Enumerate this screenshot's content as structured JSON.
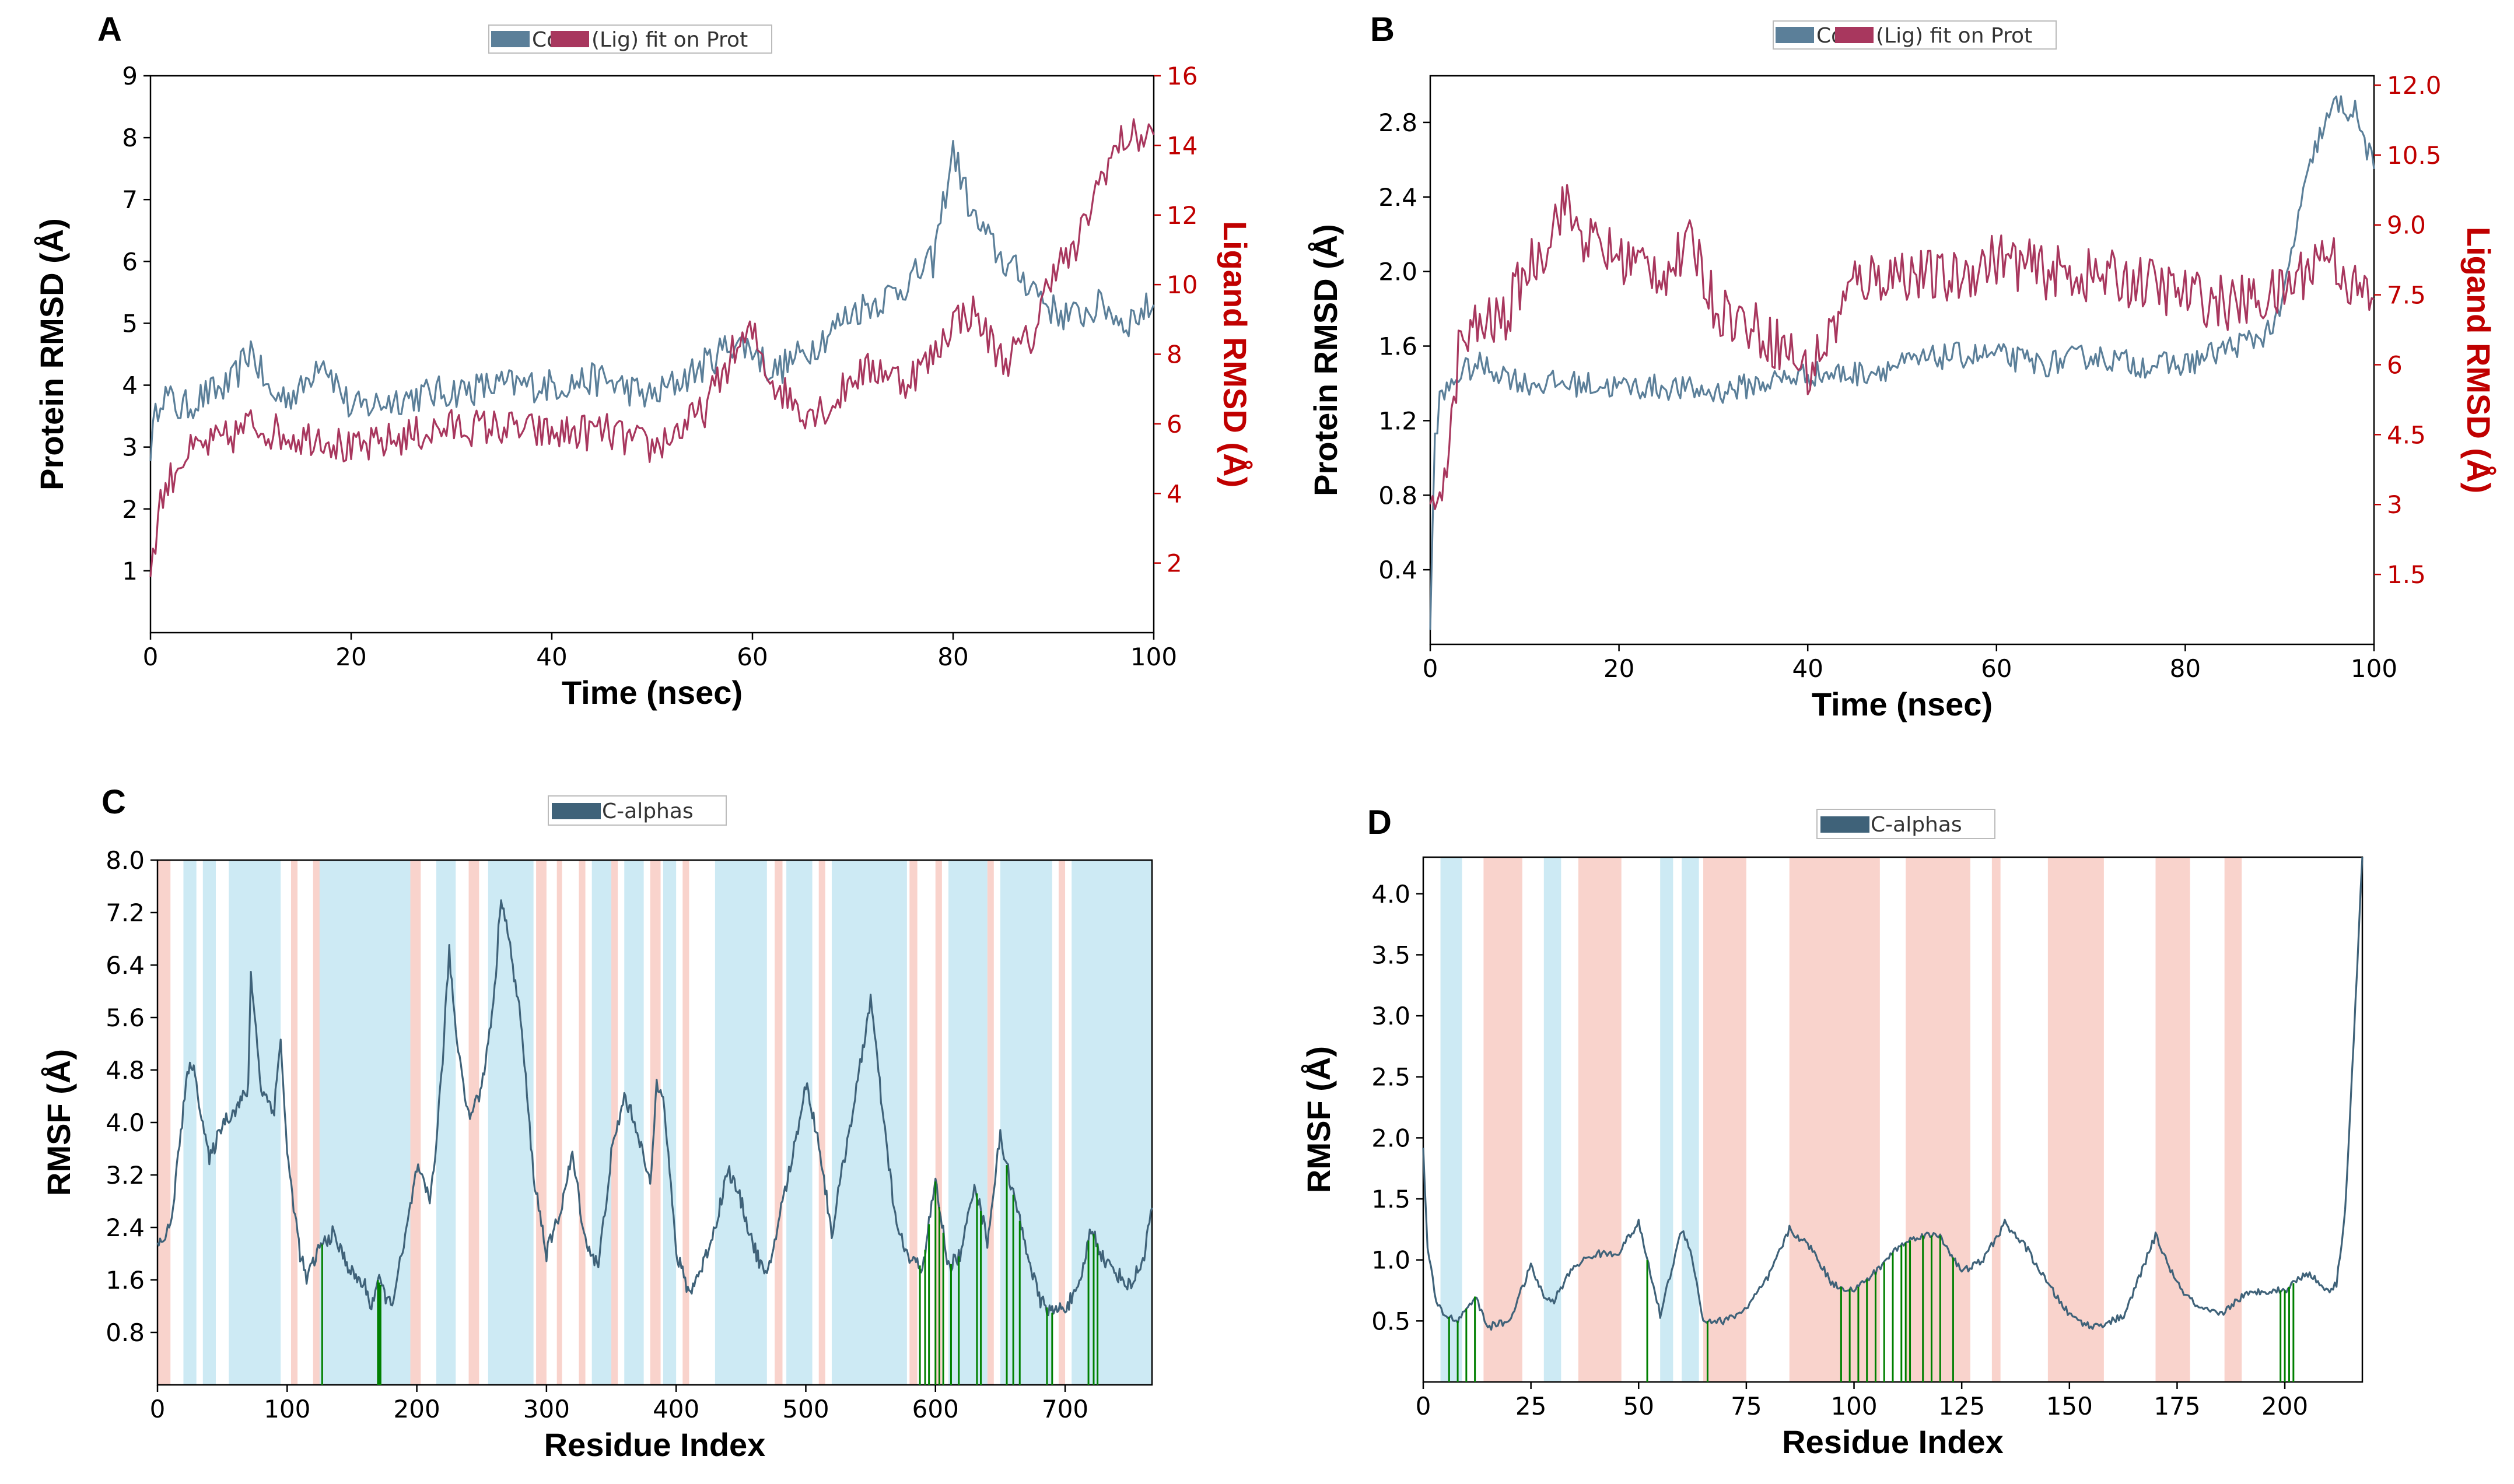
{
  "chart_data": [
    {
      "panel": "A",
      "type": "line",
      "legend": [
        "Cα",
        "(Lig) fit on Prot"
      ],
      "xlabel": "Time (nsec)",
      "ylabel": "Protein RMSD (Å)",
      "y2label": "Ligand RMSD (Å)",
      "xlim": [
        0,
        100
      ],
      "ylim": [
        0,
        9
      ],
      "y2lim": [
        0,
        16
      ],
      "xticks": [
        0,
        20,
        40,
        60,
        80,
        100
      ],
      "yticks": [
        1,
        2,
        3,
        4,
        5,
        6,
        7,
        8,
        9
      ],
      "y2ticks": [
        "2",
        "4",
        "6",
        "8",
        "10",
        "12",
        "14",
        "16"
      ],
      "colors": {
        "protein": "#5b7f99",
        "ligand": "#a8375e"
      },
      "series": [
        {
          "name": "Cα",
          "axis": "left",
          "x": [
            0,
            1,
            3,
            5,
            8,
            10,
            12,
            15,
            17,
            20,
            25,
            30,
            35,
            40,
            45,
            50,
            55,
            58,
            60,
            62,
            65,
            68,
            70,
            73,
            75,
            78,
            80,
            82,
            85,
            88,
            90,
            92,
            95,
            97,
            100
          ],
          "values": [
            3.0,
            3.9,
            3.6,
            3.8,
            4.0,
            4.6,
            3.8,
            3.9,
            4.5,
            3.6,
            3.8,
            3.9,
            4.0,
            4.0,
            4.1,
            3.8,
            4.3,
            4.7,
            4.6,
            4.2,
            4.5,
            4.9,
            5.2,
            5.4,
            5.6,
            6.0,
            7.8,
            6.7,
            6.0,
            5.6,
            5.2,
            5.1,
            5.3,
            5.0,
            5.3
          ]
        },
        {
          "name": "(Lig) fit on Prot",
          "axis": "right",
          "x": [
            0,
            1,
            3,
            5,
            8,
            10,
            12,
            15,
            17,
            20,
            25,
            30,
            35,
            40,
            45,
            50,
            55,
            58,
            60,
            62,
            65,
            68,
            70,
            73,
            75,
            78,
            80,
            82,
            85,
            88,
            90,
            92,
            95,
            97,
            100
          ],
          "values": [
            1.8,
            3.8,
            5.0,
            5.3,
            5.6,
            6.0,
            5.8,
            5.6,
            5.7,
            5.2,
            5.6,
            5.9,
            5.9,
            5.7,
            5.8,
            5.3,
            6.3,
            8.0,
            8.6,
            7.2,
            6.4,
            6.5,
            7.4,
            7.6,
            7.2,
            7.9,
            9.0,
            9.2,
            7.8,
            8.5,
            10.6,
            10.8,
            13.3,
            14.2,
            14.3
          ]
        }
      ]
    },
    {
      "panel": "B",
      "type": "line",
      "legend": [
        "Cα",
        "(Lig) fit on Prot"
      ],
      "xlabel": "Time (nsec)",
      "ylabel": "Protein RMSD (Å)",
      "y2label": "Ligand RMSD (Å)",
      "xlim": [
        0,
        100
      ],
      "ylim": [
        0,
        3.05
      ],
      "y2lim": [
        0,
        12.2
      ],
      "xticks": [
        0,
        20,
        40,
        60,
        80,
        100
      ],
      "yticks": [
        "0.4",
        "0.8",
        "1.2",
        "1.6",
        "2.0",
        "2.4",
        "2.8"
      ],
      "y2ticks": [
        "1.5",
        "3",
        "4.5",
        "6",
        "7.5",
        "9.0",
        "10.5",
        "12.0"
      ],
      "colors": {
        "protein": "#5b7f99",
        "ligand": "#a8375e"
      },
      "series": [
        {
          "name": "Cα",
          "axis": "left",
          "x": [
            0,
            0.5,
            1,
            3,
            5,
            8,
            10,
            15,
            20,
            25,
            30,
            35,
            40,
            45,
            50,
            55,
            60,
            65,
            70,
            75,
            80,
            85,
            88,
            90,
            92,
            94,
            96,
            98,
            100
          ],
          "values": [
            0.1,
            1.1,
            1.3,
            1.45,
            1.5,
            1.45,
            1.4,
            1.4,
            1.38,
            1.38,
            1.35,
            1.4,
            1.45,
            1.45,
            1.5,
            1.55,
            1.55,
            1.5,
            1.55,
            1.5,
            1.5,
            1.6,
            1.65,
            1.75,
            2.3,
            2.7,
            2.9,
            2.85,
            2.55
          ]
        },
        {
          "name": "(Lig) fit on Prot",
          "axis": "right",
          "x": [
            0,
            0.5,
            1,
            2,
            3,
            5,
            8,
            10,
            12,
            14,
            16,
            18,
            20,
            25,
            28,
            30,
            35,
            38,
            40,
            42,
            45,
            50,
            55,
            60,
            65,
            70,
            75,
            80,
            85,
            90,
            95,
            98,
            100
          ],
          "values": [
            2.5,
            3.0,
            3.5,
            4.0,
            6.3,
            6.8,
            7.0,
            8.0,
            8.5,
            9.5,
            8.8,
            8.5,
            8.3,
            8.0,
            8.6,
            7.3,
            6.7,
            6.3,
            5.8,
            6.5,
            7.8,
            8.0,
            7.8,
            8.3,
            8.0,
            7.9,
            7.8,
            7.5,
            7.3,
            7.5,
            8.5,
            7.6,
            7.4
          ]
        }
      ]
    },
    {
      "panel": "C",
      "type": "line",
      "legend": [
        "C-alphas"
      ],
      "xlabel": "Residue Index",
      "ylabel": "RMSF (Å)",
      "xlim": [
        0,
        767
      ],
      "ylim": [
        0,
        8.0
      ],
      "xticks": [
        0,
        100,
        200,
        300,
        400,
        500,
        600,
        700
      ],
      "yticks": [
        "0.8",
        "1.6",
        "2.4",
        "3.2",
        "4.0",
        "4.8",
        "5.6",
        "6.4",
        "7.2",
        "8.0"
      ],
      "colors": {
        "line": "#3f6279",
        "helix": "#f9d3cc",
        "strand": "#cdeaf4",
        "contact": "#008000"
      },
      "helix_regions": [
        [
          0,
          10
        ],
        [
          103,
          108
        ],
        [
          120,
          126
        ],
        [
          195,
          203
        ],
        [
          240,
          248
        ],
        [
          292,
          300
        ],
        [
          308,
          312
        ],
        [
          325,
          330
        ],
        [
          350,
          355
        ],
        [
          380,
          388
        ],
        [
          405,
          410
        ],
        [
          476,
          482
        ],
        [
          510,
          515
        ],
        [
          580,
          586
        ],
        [
          600,
          605
        ],
        [
          640,
          645
        ],
        [
          695,
          700
        ]
      ],
      "strand_regions": [
        [
          20,
          30
        ],
        [
          35,
          45
        ],
        [
          55,
          95
        ],
        [
          125,
          195
        ],
        [
          215,
          230
        ],
        [
          255,
          290
        ],
        [
          335,
          350
        ],
        [
          360,
          375
        ],
        [
          390,
          400
        ],
        [
          430,
          470
        ],
        [
          485,
          505
        ],
        [
          520,
          578
        ],
        [
          610,
          640
        ],
        [
          650,
          690
        ],
        [
          705,
          767
        ]
      ],
      "contacts": [
        127,
        170,
        171,
        172,
        588,
        592,
        595,
        600,
        603,
        606,
        612,
        618,
        632,
        635,
        655,
        660,
        665,
        686,
        690,
        718,
        722,
        725
      ],
      "series": [
        {
          "name": "C-alphas",
          "x": [
            0,
            10,
            20,
            25,
            30,
            40,
            50,
            60,
            70,
            72,
            80,
            90,
            95,
            100,
            110,
            115,
            125,
            135,
            140,
            150,
            160,
            165,
            170,
            180,
            190,
            200,
            210,
            215,
            220,
            225,
            230,
            240,
            250,
            260,
            265,
            270,
            280,
            290,
            300,
            310,
            320,
            330,
            340,
            350,
            360,
            370,
            380,
            385,
            390,
            400,
            410,
            420,
            430,
            440,
            450,
            460,
            470,
            480,
            490,
            500,
            510,
            520,
            530,
            540,
            550,
            560,
            570,
            580,
            590,
            600,
            610,
            620,
            630,
            640,
            650,
            660,
            670,
            680,
            690,
            700,
            710,
            720,
            730,
            740,
            750,
            760,
            767
          ],
          "values": [
            2.1,
            2.4,
            4.2,
            5.0,
            4.6,
            3.4,
            4.0,
            4.2,
            4.5,
            6.3,
            4.5,
            4.2,
            5.3,
            3.5,
            2.0,
            1.6,
            2.1,
            2.3,
            2.1,
            1.7,
            1.5,
            1.2,
            1.6,
            1.2,
            2.1,
            3.3,
            2.8,
            3.7,
            5.0,
            6.6,
            5.4,
            4.1,
            4.5,
            6.0,
            7.5,
            6.9,
            5.6,
            3.2,
            2.0,
            2.6,
            3.5,
            2.2,
            1.8,
            3.5,
            4.4,
            3.9,
            3.0,
            4.6,
            4.5,
            2.0,
            1.4,
            1.8,
            2.4,
            3.3,
            2.8,
            2.1,
            1.6,
            2.6,
            3.5,
            4.6,
            3.7,
            2.3,
            3.5,
            4.6,
            5.9,
            4.0,
            2.4,
            1.9,
            1.8,
            3.1,
            1.8,
            2.0,
            3.1,
            2.2,
            3.8,
            2.9,
            2.1,
            1.3,
            1.1,
            1.2,
            1.4,
            2.4,
            1.9,
            1.7,
            1.5,
            1.9,
            2.7
          ]
        }
      ]
    },
    {
      "panel": "D",
      "type": "line",
      "legend": [
        "C-alphas"
      ],
      "xlabel": "Residue Index",
      "ylabel": "RMSF (Å)",
      "xlim": [
        0,
        218
      ],
      "ylim": [
        0,
        4.3
      ],
      "xticks": [
        0,
        25,
        50,
        75,
        100,
        125,
        150,
        175,
        200
      ],
      "yticks": [
        "0.5",
        "1.0",
        "1.5",
        "2.0",
        "2.5",
        "3.0",
        "3.5",
        "4.0"
      ],
      "colors": {
        "line": "#3f6279",
        "helix": "#f9d3cc",
        "strand": "#cdeaf4",
        "contact": "#008000"
      },
      "helix_regions": [
        [
          14,
          23
        ],
        [
          36,
          46
        ],
        [
          65,
          75
        ],
        [
          85,
          106
        ],
        [
          112,
          127
        ],
        [
          132,
          134
        ],
        [
          145,
          158
        ],
        [
          170,
          178
        ],
        [
          186,
          190
        ]
      ],
      "strand_regions": [
        [
          4,
          9
        ],
        [
          28,
          32
        ],
        [
          55,
          58
        ],
        [
          60,
          64
        ]
      ],
      "contacts": [
        6,
        8,
        10,
        12,
        52,
        66,
        97,
        99,
        101,
        103,
        105,
        107,
        109,
        111,
        112,
        113,
        116,
        118,
        120,
        123,
        199,
        200,
        201,
        202
      ],
      "series": [
        {
          "name": "C-alphas",
          "x": [
            0,
            1,
            3,
            5,
            8,
            10,
            12,
            15,
            20,
            25,
            28,
            30,
            35,
            40,
            45,
            50,
            55,
            60,
            62,
            65,
            70,
            75,
            80,
            85,
            90,
            95,
            100,
            105,
            110,
            115,
            120,
            125,
            130,
            135,
            140,
            145,
            150,
            155,
            160,
            163,
            165,
            170,
            175,
            180,
            185,
            190,
            195,
            200,
            205,
            210,
            212,
            214,
            216,
            218
          ],
          "values": [
            1.9,
            1.1,
            0.65,
            0.55,
            0.5,
            0.6,
            0.7,
            0.45,
            0.5,
            0.95,
            0.7,
            0.65,
            0.95,
            1.05,
            1.05,
            1.3,
            0.55,
            1.25,
            1.1,
            0.5,
            0.5,
            0.6,
            0.85,
            1.25,
            1.1,
            0.8,
            0.75,
            0.9,
            1.1,
            1.2,
            1.2,
            0.9,
            1.0,
            1.3,
            1.1,
            0.8,
            0.55,
            0.45,
            0.5,
            0.55,
            0.75,
            1.2,
            0.8,
            0.6,
            0.55,
            0.7,
            0.75,
            0.75,
            0.9,
            0.75,
            0.8,
            1.4,
            2.8,
            4.3
          ]
        }
      ]
    }
  ]
}
